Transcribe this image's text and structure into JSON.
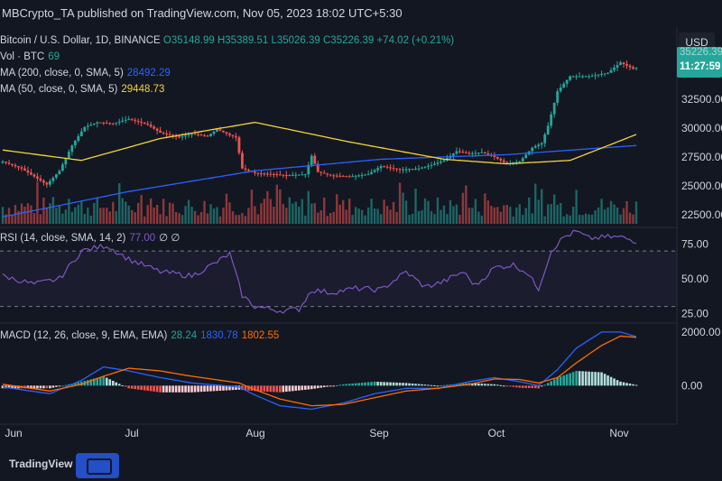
{
  "header": {
    "publisher": "MBCrypto_TA published on TradingView.com, Nov 05, 2023 18:02 UTC+5:30"
  },
  "legend": {
    "symbol": "Bitcoin / U.S. Dollar, 1D, BINANCE",
    "ohlc": "O35148.99 H35389.51 L35026.39 C35226.39 +74.02 (+0.21%)",
    "vol_label": "Vol · BTC",
    "vol_value": "69",
    "ma200_label": "MA (200, close, 0, SMA, 5)",
    "ma200_value": "28492.29",
    "ma50_label": "MA (50, close, 0, SMA, 5)",
    "ma50_value": "29448.73",
    "rsi_label": "RSI (14, close, SMA, 14, 2)",
    "rsi_value": "77.00",
    "rsi_extra": "∅ ∅",
    "macd_label": "MACD (12, 26, close, 9, EMA, EMA)",
    "macd_hist": "28.24",
    "macd_line": "1830.78",
    "macd_signal": "1802.55"
  },
  "price_axis": {
    "currency": "USD",
    "current_price": "35226.39",
    "countdown": "11:27:59"
  },
  "watermark": "TradingView",
  "colors": {
    "background": "#131722",
    "up": "#26a69a",
    "down": "#ef5350",
    "ma200": "#2962ff",
    "ma50": "#f5d33a",
    "rsi": "#7e57c2",
    "macd": "#2962ff",
    "signal": "#ff6d00"
  },
  "chart_data": [
    {
      "type": "candlestick",
      "x_ticks": [
        "Jun",
        "Jul",
        "Aug",
        "Sep",
        "Oct",
        "Nov"
      ],
      "y_ticks": [
        "22500.00",
        "25000.00",
        "27500.00",
        "30000.00",
        "32500.00"
      ],
      "ylim": [
        21700,
        37200
      ],
      "close_keypoints": [
        [
          0,
          27100
        ],
        [
          6,
          26500
        ],
        [
          10,
          25800
        ],
        [
          14,
          25100
        ],
        [
          18,
          26300
        ],
        [
          22,
          28500
        ],
        [
          26,
          30100
        ],
        [
          30,
          30500
        ],
        [
          35,
          30400
        ],
        [
          40,
          30800
        ],
        [
          46,
          30300
        ],
        [
          50,
          29600
        ],
        [
          56,
          29200
        ],
        [
          60,
          29500
        ],
        [
          65,
          29300
        ],
        [
          68,
          29900
        ],
        [
          72,
          29400
        ],
        [
          74,
          29200
        ],
        [
          76,
          26500
        ],
        [
          80,
          26100
        ],
        [
          86,
          26000
        ],
        [
          90,
          25900
        ],
        [
          96,
          26000
        ],
        [
          98,
          27600
        ],
        [
          100,
          26200
        ],
        [
          104,
          25900
        ],
        [
          110,
          25800
        ],
        [
          116,
          26000
        ],
        [
          120,
          26700
        ],
        [
          126,
          26400
        ],
        [
          132,
          26500
        ],
        [
          136,
          26800
        ],
        [
          140,
          27200
        ],
        [
          144,
          28000
        ],
        [
          148,
          27800
        ],
        [
          152,
          27900
        ],
        [
          156,
          27500
        ],
        [
          160,
          26900
        ],
        [
          164,
          27100
        ],
        [
          168,
          28300
        ],
        [
          171,
          28700
        ],
        [
          173,
          30200
        ],
        [
          176,
          33200
        ],
        [
          180,
          34500
        ],
        [
          186,
          34500
        ],
        [
          192,
          34800
        ],
        [
          196,
          35700
        ],
        [
          200,
          35150
        ],
        [
          201,
          35226
        ]
      ],
      "series": [
        {
          "name": "MA (200, close, 0, SMA, 5)",
          "keypoints": [
            [
              0,
              22300
            ],
            [
              40,
              24500
            ],
            [
              80,
              26300
            ],
            [
              120,
              27300
            ],
            [
              160,
              27700
            ],
            [
              201,
              28492
            ]
          ]
        },
        {
          "name": "MA (50, close, 0, SMA, 5)",
          "keypoints": [
            [
              0,
              28100
            ],
            [
              25,
              27200
            ],
            [
              50,
              29100
            ],
            [
              80,
              30500
            ],
            [
              110,
              28800
            ],
            [
              140,
              27300
            ],
            [
              160,
              26900
            ],
            [
              180,
              27200
            ],
            [
              201,
              29449
            ]
          ]
        }
      ]
    },
    {
      "type": "bar",
      "name": "Vol · BTC",
      "note": "volume histogram in price pane, last value 69"
    },
    {
      "type": "line",
      "name": "RSI (14, close, SMA, 14, 2)",
      "y_ticks": [
        "25.00",
        "50.00",
        "75.00"
      ],
      "levels": [
        30,
        70
      ],
      "ylim": [
        20,
        85
      ],
      "keypoints": [
        [
          0,
          52
        ],
        [
          10,
          46
        ],
        [
          18,
          50
        ],
        [
          25,
          70
        ],
        [
          33,
          74
        ],
        [
          40,
          64
        ],
        [
          50,
          55
        ],
        [
          60,
          52
        ],
        [
          68,
          62
        ],
        [
          72,
          68
        ],
        [
          76,
          38
        ],
        [
          80,
          30
        ],
        [
          88,
          27
        ],
        [
          94,
          28
        ],
        [
          98,
          42
        ],
        [
          104,
          40
        ],
        [
          112,
          43
        ],
        [
          120,
          42
        ],
        [
          128,
          55
        ],
        [
          134,
          44
        ],
        [
          140,
          48
        ],
        [
          146,
          55
        ],
        [
          150,
          45
        ],
        [
          156,
          58
        ],
        [
          162,
          60
        ],
        [
          166,
          55
        ],
        [
          170,
          43
        ],
        [
          174,
          70
        ],
        [
          178,
          80
        ],
        [
          182,
          84
        ],
        [
          186,
          79
        ],
        [
          192,
          80
        ],
        [
          196,
          80
        ],
        [
          201,
          77
        ]
      ]
    },
    {
      "type": "line",
      "name": "MACD (12, 26, close, 9, EMA, EMA)",
      "y_ticks": [
        "0.00",
        "2000.00"
      ],
      "ylim": [
        -1100,
        2200
      ],
      "macd_keypoints": [
        [
          0,
          -50
        ],
        [
          15,
          -300
        ],
        [
          25,
          200
        ],
        [
          32,
          700
        ],
        [
          40,
          550
        ],
        [
          50,
          300
        ],
        [
          60,
          100
        ],
        [
          75,
          -50
        ],
        [
          80,
          -350
        ],
        [
          88,
          -750
        ],
        [
          98,
          -880
        ],
        [
          108,
          -650
        ],
        [
          118,
          -300
        ],
        [
          128,
          -100
        ],
        [
          138,
          -100
        ],
        [
          148,
          150
        ],
        [
          156,
          300
        ],
        [
          164,
          150
        ],
        [
          170,
          0
        ],
        [
          176,
          600
        ],
        [
          182,
          1400
        ],
        [
          190,
          2000
        ],
        [
          196,
          2000
        ],
        [
          201,
          1831
        ]
      ],
      "signal_keypoints": [
        [
          0,
          50
        ],
        [
          15,
          -200
        ],
        [
          25,
          50
        ],
        [
          32,
          350
        ],
        [
          40,
          650
        ],
        [
          50,
          550
        ],
        [
          60,
          350
        ],
        [
          75,
          100
        ],
        [
          80,
          -150
        ],
        [
          88,
          -500
        ],
        [
          98,
          -750
        ],
        [
          108,
          -700
        ],
        [
          118,
          -450
        ],
        [
          128,
          -200
        ],
        [
          138,
          -100
        ],
        [
          148,
          50
        ],
        [
          156,
          250
        ],
        [
          164,
          230
        ],
        [
          170,
          100
        ],
        [
          176,
          300
        ],
        [
          182,
          850
        ],
        [
          190,
          1500
        ],
        [
          196,
          1850
        ],
        [
          201,
          1803
        ]
      ],
      "hist_last": 28.24
    }
  ]
}
